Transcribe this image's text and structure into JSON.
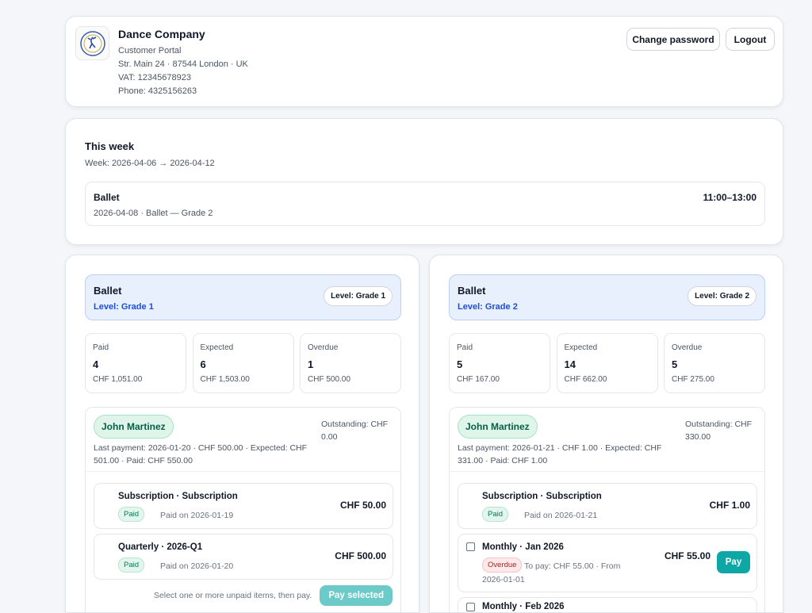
{
  "header": {
    "company": "Dance Company",
    "subtitle": "Customer Portal",
    "address": "Str. Main 24 · 87544 London · UK",
    "vat": "VAT: 12345678923",
    "phone": "Phone: 4325156263",
    "change_password": "Change password",
    "logout": "Logout",
    "logo_icon": "ballet-dancer-seal-logo"
  },
  "week": {
    "title": "This week",
    "range": "Week: 2026-04-06 → 2026-04-12",
    "events": [
      {
        "name": "Ballet",
        "detail": "2026-04-08 · Ballet — Grade 2",
        "time": "11:00–13:00"
      }
    ]
  },
  "groups": [
    {
      "title": "Ballet",
      "level": "Level: Grade 1",
      "level_pill": "Level: Grade 1",
      "stats": [
        {
          "label": "Paid",
          "count": "4",
          "amount": "CHF 1,051.00"
        },
        {
          "label": "Expected",
          "count": "6",
          "amount": "CHF 1,503.00"
        },
        {
          "label": "Overdue",
          "count": "1",
          "amount": "CHF 500.00"
        }
      ],
      "customer": {
        "name": "John Martinez",
        "last": "Last payment: 2026-01-20 · CHF 500.00 · Expected: CHF 501.00 · Paid: CHF 550.00",
        "outstanding": "Outstanding: CHF 0.00",
        "items": [
          {
            "title": "Subscription · Subscription",
            "status": "Paid",
            "desc": "Paid on 2026-01-19",
            "amount": "CHF 50.00"
          },
          {
            "title": "Quarterly · 2026-Q1",
            "status": "Paid",
            "desc": "Paid on 2026-01-20",
            "amount": "CHF 500.00"
          }
        ],
        "hint": "Select one or more unpaid items, then pay.",
        "pay_selected": "Pay selected"
      }
    },
    {
      "title": "Ballet",
      "level": "Level: Grade 2",
      "level_pill": "Level: Grade 2",
      "stats": [
        {
          "label": "Paid",
          "count": "5",
          "amount": "CHF 167.00"
        },
        {
          "label": "Expected",
          "count": "14",
          "amount": "CHF 662.00"
        },
        {
          "label": "Overdue",
          "count": "5",
          "amount": "CHF 275.00"
        }
      ],
      "customer": {
        "name": "John Martinez",
        "last": "Last payment: 2026-01-21 · CHF 1.00 · Expected: CHF 331.00 · Paid: CHF 1.00",
        "outstanding": "Outstanding: CHF 330.00",
        "items": [
          {
            "title": "Subscription · Subscription",
            "status": "Paid",
            "desc": "Paid on 2026-01-21",
            "amount": "CHF 1.00"
          },
          {
            "title": "Monthly · Jan 2026",
            "status": "Overdue",
            "desc": "To pay: CHF 55.00 · From 2026-01-01",
            "amount": "CHF 55.00",
            "pay": "Pay"
          },
          {
            "title": "Monthly · Feb 2026",
            "checkbox": true
          }
        ]
      }
    }
  ]
}
